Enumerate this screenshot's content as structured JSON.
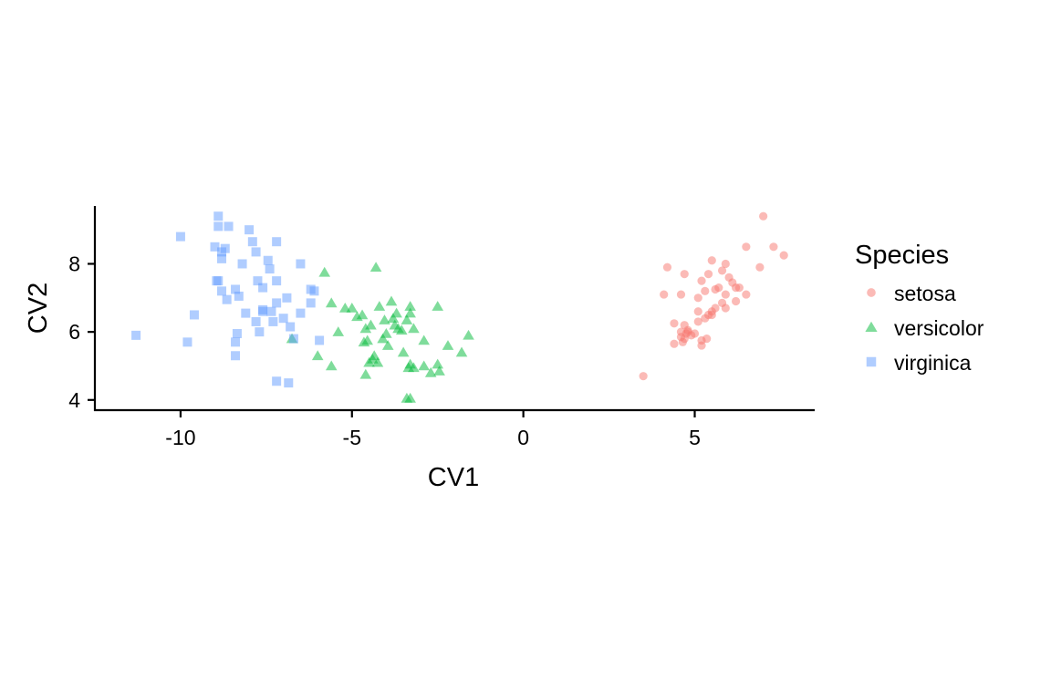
{
  "chart_data": {
    "type": "scatter",
    "xlabel": "CV1",
    "ylabel": "CV2",
    "xlim": [
      -12.5,
      8.5
    ],
    "ylim": [
      3.7,
      9.7
    ],
    "xticks": [
      -10,
      -5,
      0,
      5
    ],
    "xtick_labels": [
      "-10",
      "-5",
      "0",
      "5"
    ],
    "yticks": [
      4,
      6,
      8
    ],
    "ytick_labels": [
      "4",
      "6",
      "8"
    ],
    "grid": false,
    "legend": {
      "title": "Species",
      "placement": "right"
    },
    "series": [
      {
        "name": "setosa",
        "marker": "circle",
        "color": "#F8766D",
        "points": [
          [
            7.0,
            9.4
          ],
          [
            6.5,
            8.5
          ],
          [
            7.3,
            8.5
          ],
          [
            7.6,
            8.25
          ],
          [
            5.9,
            8.0
          ],
          [
            5.5,
            8.1
          ],
          [
            6.9,
            7.9
          ],
          [
            4.2,
            7.9
          ],
          [
            4.7,
            7.7
          ],
          [
            5.4,
            7.7
          ],
          [
            5.8,
            7.8
          ],
          [
            6.0,
            7.6
          ],
          [
            6.1,
            7.45
          ],
          [
            5.2,
            7.5
          ],
          [
            5.6,
            7.25
          ],
          [
            5.7,
            7.3
          ],
          [
            6.2,
            7.3
          ],
          [
            6.3,
            7.3
          ],
          [
            4.1,
            7.1
          ],
          [
            4.6,
            7.1
          ],
          [
            5.3,
            7.2
          ],
          [
            5.1,
            7.0
          ],
          [
            5.9,
            7.1
          ],
          [
            6.5,
            7.1
          ],
          [
            5.8,
            6.85
          ],
          [
            6.2,
            6.9
          ],
          [
            5.9,
            6.7
          ],
          [
            5.5,
            6.6
          ],
          [
            5.5,
            6.5
          ],
          [
            5.6,
            6.7
          ],
          [
            5.1,
            6.6
          ],
          [
            5.4,
            6.5
          ],
          [
            5.3,
            6.4
          ],
          [
            5.1,
            6.3
          ],
          [
            4.4,
            6.25
          ],
          [
            4.7,
            6.2
          ],
          [
            4.8,
            6.05
          ],
          [
            4.6,
            6.0
          ],
          [
            4.75,
            5.95
          ],
          [
            4.9,
            5.9
          ],
          [
            5.0,
            5.95
          ],
          [
            4.6,
            5.85
          ],
          [
            4.7,
            5.8
          ],
          [
            5.2,
            5.75
          ],
          [
            5.35,
            5.8
          ],
          [
            4.4,
            5.65
          ],
          [
            4.65,
            5.7
          ],
          [
            5.2,
            5.6
          ],
          [
            4.8,
            6.0
          ],
          [
            3.5,
            4.7
          ]
        ]
      },
      {
        "name": "versicolor",
        "marker": "triangle",
        "color": "#00BA38",
        "points": [
          [
            -4.3,
            7.9
          ],
          [
            -5.8,
            7.75
          ],
          [
            -3.3,
            6.75
          ],
          [
            -2.5,
            6.75
          ],
          [
            -5.6,
            6.85
          ],
          [
            -5.2,
            6.7
          ],
          [
            -5.0,
            6.7
          ],
          [
            -4.2,
            6.75
          ],
          [
            -3.85,
            6.9
          ],
          [
            -3.7,
            6.55
          ],
          [
            -4.7,
            6.5
          ],
          [
            -4.05,
            6.35
          ],
          [
            -3.3,
            6.55
          ],
          [
            -3.4,
            6.35
          ],
          [
            -4.85,
            6.45
          ],
          [
            -4.45,
            6.2
          ],
          [
            -3.75,
            6.2
          ],
          [
            -3.65,
            6.1
          ],
          [
            -3.55,
            6.05
          ],
          [
            -3.2,
            6.1
          ],
          [
            -4.6,
            6.1
          ],
          [
            -5.4,
            6.0
          ],
          [
            -2.9,
            5.75
          ],
          [
            -1.6,
            5.9
          ],
          [
            -2.2,
            5.6
          ],
          [
            -4.1,
            5.8
          ],
          [
            -4.55,
            5.75
          ],
          [
            -4.65,
            5.7
          ],
          [
            -3.95,
            5.6
          ],
          [
            -3.5,
            5.4
          ],
          [
            -6.75,
            5.8
          ],
          [
            -4.35,
            5.3
          ],
          [
            -6.0,
            5.3
          ],
          [
            -4.5,
            5.1
          ],
          [
            -4.25,
            5.1
          ],
          [
            -4.4,
            5.2
          ],
          [
            -3.3,
            5.05
          ],
          [
            -3.2,
            4.95
          ],
          [
            -3.35,
            4.95
          ],
          [
            -2.9,
            5.0
          ],
          [
            -2.5,
            5.05
          ],
          [
            -1.8,
            5.4
          ],
          [
            -5.6,
            5.0
          ],
          [
            -2.7,
            4.8
          ],
          [
            -2.45,
            4.85
          ],
          [
            -4.6,
            4.75
          ],
          [
            -3.4,
            4.05
          ],
          [
            -3.3,
            4.05
          ],
          [
            -3.8,
            6.4
          ],
          [
            -4.0,
            5.95
          ]
        ]
      },
      {
        "name": "virginica",
        "marker": "square",
        "color": "#619CFF",
        "points": [
          [
            -8.9,
            9.4
          ],
          [
            -8.9,
            9.1
          ],
          [
            -8.6,
            9.1
          ],
          [
            -8.0,
            9.0
          ],
          [
            -10.0,
            8.8
          ],
          [
            -7.9,
            8.65
          ],
          [
            -7.2,
            8.65
          ],
          [
            -8.7,
            8.45
          ],
          [
            -8.8,
            8.35
          ],
          [
            -7.8,
            8.35
          ],
          [
            -8.8,
            8.15
          ],
          [
            -7.45,
            8.1
          ],
          [
            -6.5,
            8.0
          ],
          [
            -7.4,
            7.85
          ],
          [
            -8.95,
            7.5
          ],
          [
            -8.9,
            7.5
          ],
          [
            -7.75,
            7.5
          ],
          [
            -7.2,
            7.5
          ],
          [
            -7.6,
            7.3
          ],
          [
            -8.4,
            7.25
          ],
          [
            -6.1,
            7.2
          ],
          [
            -6.2,
            7.25
          ],
          [
            -8.65,
            6.95
          ],
          [
            -8.3,
            7.05
          ],
          [
            -6.9,
            7.0
          ],
          [
            -7.2,
            6.85
          ],
          [
            -6.2,
            6.85
          ],
          [
            -7.6,
            6.65
          ],
          [
            -7.6,
            6.6
          ],
          [
            -7.35,
            6.6
          ],
          [
            -8.1,
            6.55
          ],
          [
            -6.5,
            6.55
          ],
          [
            -7.3,
            6.3
          ],
          [
            -7.8,
            6.3
          ],
          [
            -9.6,
            6.5
          ],
          [
            -6.8,
            6.15
          ],
          [
            -8.35,
            5.95
          ],
          [
            -11.3,
            5.9
          ],
          [
            -6.7,
            5.8
          ],
          [
            -5.95,
            5.75
          ],
          [
            -8.4,
            5.7
          ],
          [
            -9.8,
            5.7
          ],
          [
            -8.4,
            5.3
          ],
          [
            -7.2,
            4.55
          ],
          [
            -6.85,
            4.5
          ],
          [
            -8.8,
            7.2
          ],
          [
            -7.0,
            6.4
          ],
          [
            -8.2,
            8.0
          ],
          [
            -9.0,
            8.5
          ],
          [
            -7.7,
            6.0
          ]
        ]
      }
    ]
  }
}
